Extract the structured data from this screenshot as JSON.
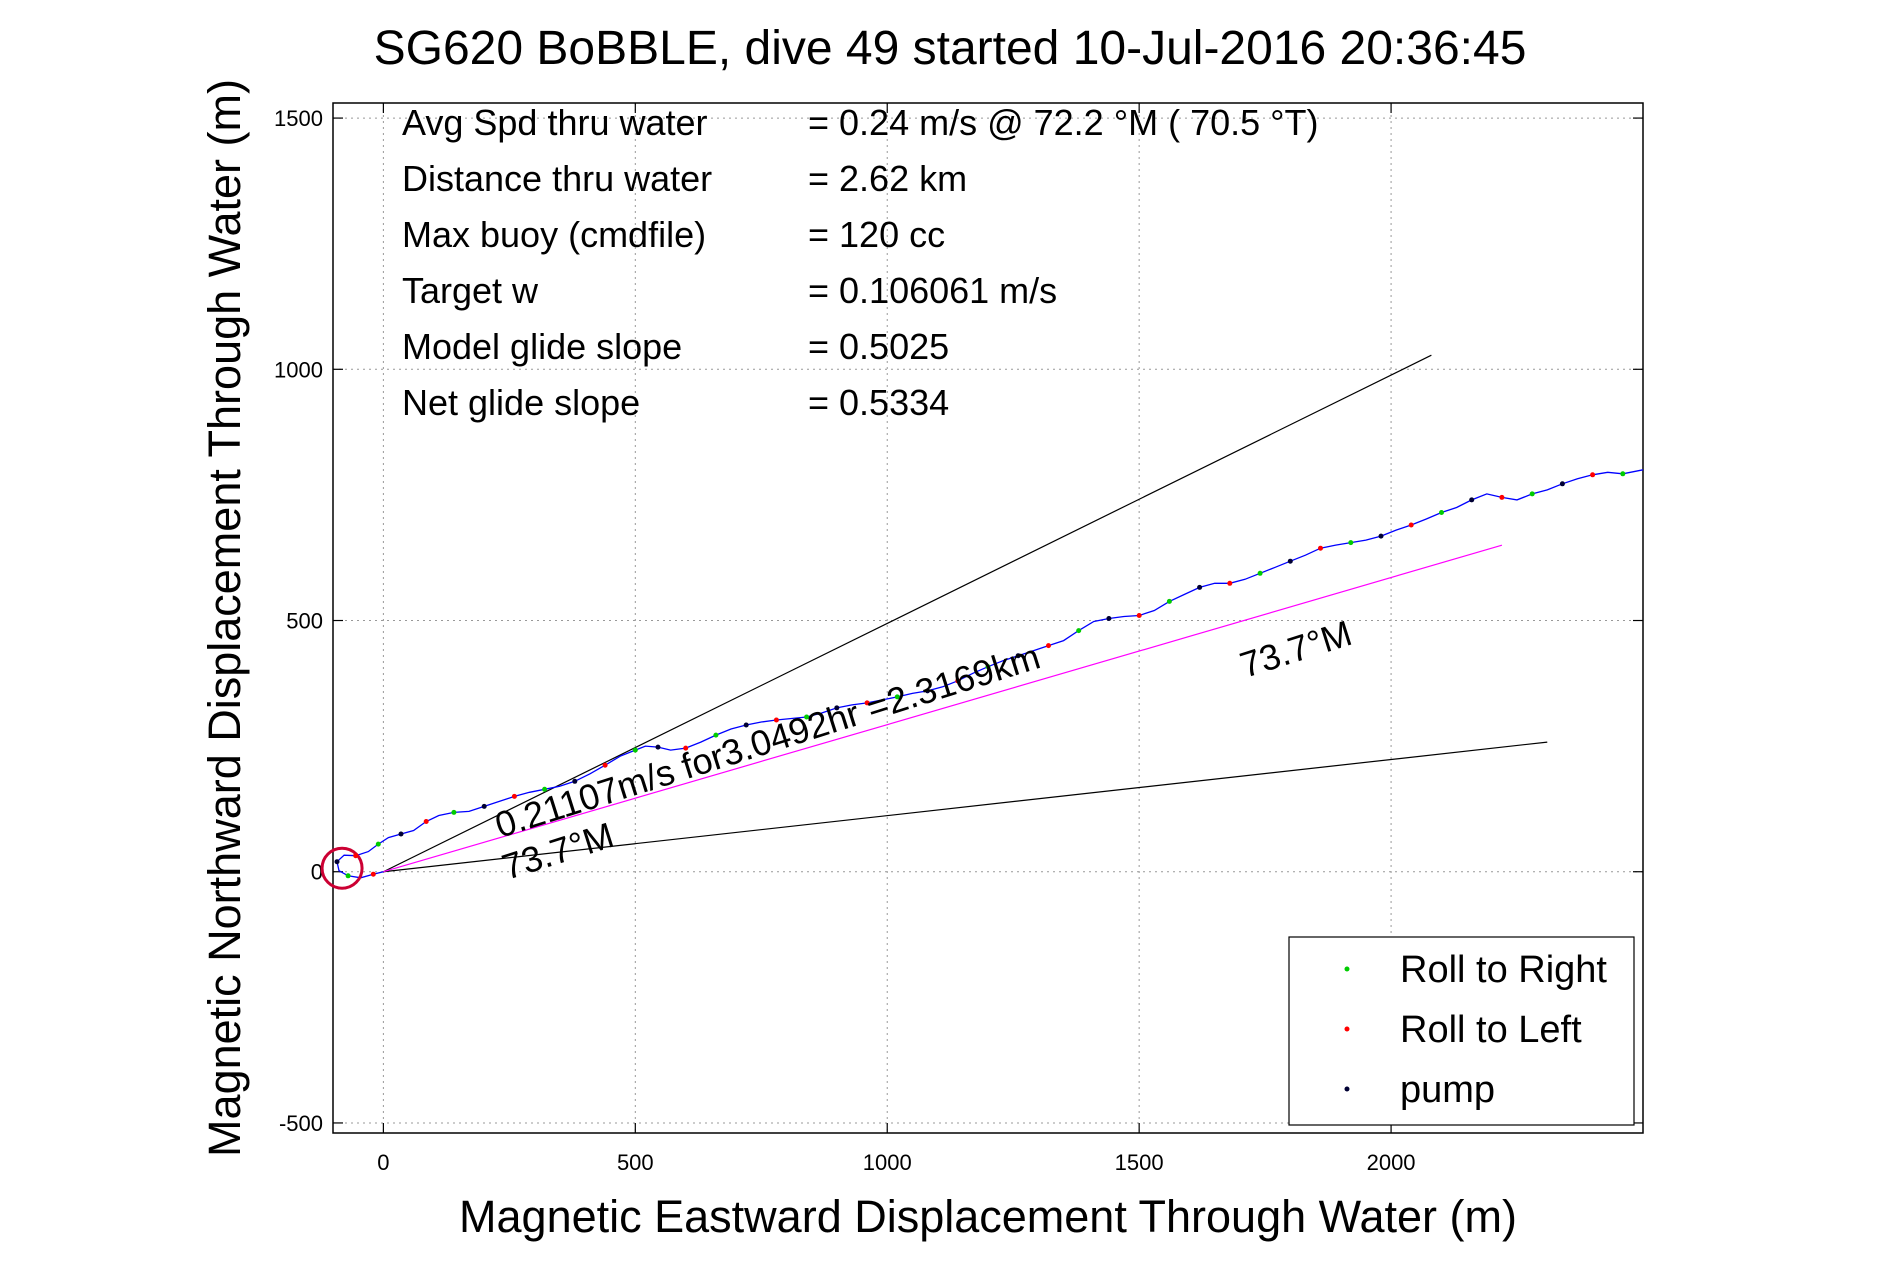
{
  "chart_data": {
    "type": "line",
    "title": "SG620 BoBBLE, dive 49 started 10-Jul-2016 20:36:45",
    "xlabel": "Magnetic Eastward Displacement Through Water (m)",
    "ylabel": "Magnetic Northward Displacement Through Water (m)",
    "xlim": [
      -100,
      2500
    ],
    "ylim": [
      -520,
      1530
    ],
    "xticks": [
      0,
      500,
      1000,
      1500,
      2000
    ],
    "yticks": [
      -500,
      0,
      500,
      1000,
      1500
    ],
    "grid": true,
    "stats": [
      {
        "label": "Avg Spd thru water",
        "value": "=  0.24 m/s @  72.2 °M ( 70.5 °T)"
      },
      {
        "label": "Distance thru water",
        "value": "=  2.62 km"
      },
      {
        "label": "Max buoy (cmdfile)",
        "value": "= 120 cc"
      },
      {
        "label": "Target w",
        "value": "= 0.106061 m/s"
      },
      {
        "label": "Model glide slope",
        "value": "= 0.5025"
      },
      {
        "label": "Net glide slope",
        "value": "= 0.5334"
      }
    ],
    "annotations": {
      "speed": "0.21107m/s for3.0492hr =2.3169km",
      "heading_upper": "73.7°M",
      "heading_lower": "73.7°M"
    },
    "track": {
      "color": "#0000ff",
      "points": [
        [
          0,
          0
        ],
        [
          -20,
          -5
        ],
        [
          -45,
          -12
        ],
        [
          -70,
          -8
        ],
        [
          -88,
          2
        ],
        [
          -92,
          20
        ],
        [
          -78,
          33
        ],
        [
          -55,
          32
        ],
        [
          -30,
          40
        ],
        [
          -10,
          55
        ],
        [
          10,
          68
        ],
        [
          35,
          75
        ],
        [
          60,
          82
        ],
        [
          85,
          100
        ],
        [
          110,
          112
        ],
        [
          140,
          118
        ],
        [
          170,
          120
        ],
        [
          200,
          130
        ],
        [
          230,
          140
        ],
        [
          260,
          150
        ],
        [
          290,
          158
        ],
        [
          320,
          164
        ],
        [
          350,
          170
        ],
        [
          380,
          180
        ],
        [
          410,
          195
        ],
        [
          440,
          212
        ],
        [
          470,
          230
        ],
        [
          500,
          242
        ],
        [
          520,
          250
        ],
        [
          545,
          248
        ],
        [
          570,
          242
        ],
        [
          600,
          246
        ],
        [
          630,
          258
        ],
        [
          660,
          272
        ],
        [
          690,
          284
        ],
        [
          720,
          292
        ],
        [
          750,
          298
        ],
        [
          780,
          302
        ],
        [
          810,
          305
        ],
        [
          840,
          308
        ],
        [
          870,
          316
        ],
        [
          900,
          326
        ],
        [
          930,
          332
        ],
        [
          960,
          336
        ],
        [
          990,
          342
        ],
        [
          1020,
          348
        ],
        [
          1050,
          355
        ],
        [
          1080,
          360
        ],
        [
          1110,
          368
        ],
        [
          1140,
          380
        ],
        [
          1170,
          395
        ],
        [
          1200,
          408
        ],
        [
          1230,
          420
        ],
        [
          1260,
          430
        ],
        [
          1290,
          440
        ],
        [
          1320,
          450
        ],
        [
          1350,
          460
        ],
        [
          1380,
          480
        ],
        [
          1410,
          498
        ],
        [
          1440,
          504
        ],
        [
          1470,
          508
        ],
        [
          1500,
          510
        ],
        [
          1530,
          520
        ],
        [
          1560,
          538
        ],
        [
          1590,
          552
        ],
        [
          1620,
          566
        ],
        [
          1650,
          574
        ],
        [
          1680,
          574
        ],
        [
          1710,
          582
        ],
        [
          1740,
          594
        ],
        [
          1770,
          606
        ],
        [
          1800,
          618
        ],
        [
          1830,
          630
        ],
        [
          1860,
          644
        ],
        [
          1890,
          650
        ],
        [
          1920,
          655
        ],
        [
          1950,
          660
        ],
        [
          1980,
          668
        ],
        [
          2010,
          680
        ],
        [
          2040,
          690
        ],
        [
          2070,
          702
        ],
        [
          2100,
          715
        ],
        [
          2130,
          725
        ],
        [
          2160,
          740
        ],
        [
          2190,
          752
        ],
        [
          2220,
          745
        ],
        [
          2250,
          740
        ],
        [
          2280,
          752
        ],
        [
          2310,
          760
        ],
        [
          2340,
          772
        ],
        [
          2370,
          782
        ],
        [
          2400,
          790
        ],
        [
          2430,
          795
        ],
        [
          2460,
          792
        ],
        [
          2500,
          800
        ]
      ]
    },
    "circle_loop": {
      "center": [
        -82,
        7
      ],
      "radius": 20
    },
    "reference_lines": [
      {
        "name": "upper",
        "x": [
          0,
          2080
        ],
        "y": [
          0,
          1028
        ],
        "color": "#000000"
      },
      {
        "name": "lower",
        "x": [
          0,
          2310
        ],
        "y": [
          0,
          258
        ],
        "color": "#000000"
      },
      {
        "name": "avg",
        "x": [
          0,
          2220
        ],
        "y": [
          0,
          650
        ],
        "color": "#ff00ff"
      }
    ],
    "legend": {
      "placement": "bottom-right",
      "entries": [
        {
          "label": "Roll to Right",
          "color": "#00cc00"
        },
        {
          "label": "Roll to Left",
          "color": "#ff0000"
        },
        {
          "label": "pump",
          "color": "#000033"
        }
      ]
    }
  }
}
